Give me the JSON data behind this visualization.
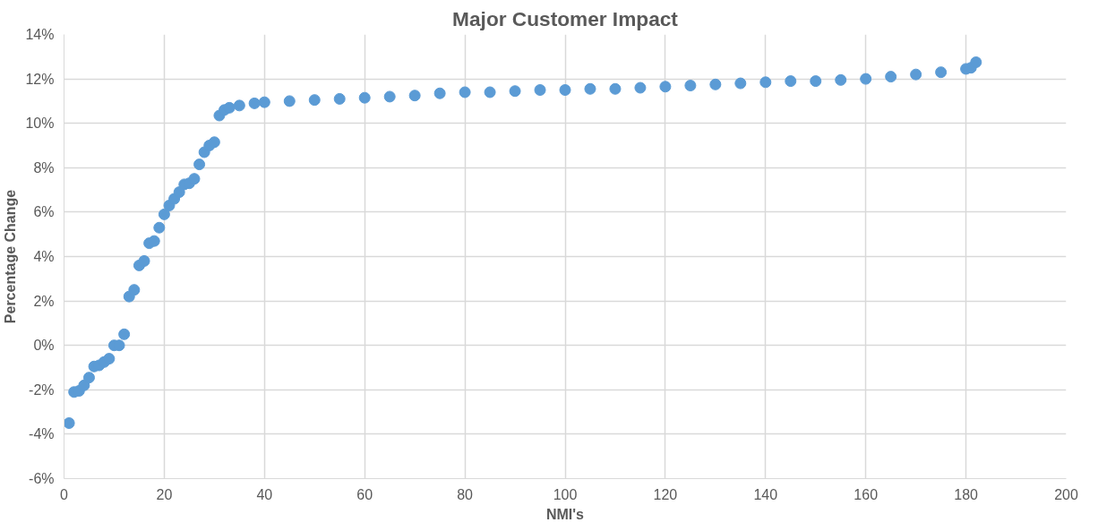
{
  "chart_data": {
    "type": "scatter",
    "title": "Major Customer Impact",
    "xlabel": "NMI's",
    "ylabel": "Percentage Change",
    "x": [
      1,
      2,
      3,
      4,
      5,
      6,
      7,
      8,
      9,
      10,
      11,
      12,
      13,
      14,
      15,
      16,
      17,
      18,
      19,
      20,
      21,
      22,
      23,
      24,
      25,
      26,
      27,
      28,
      29,
      30,
      31,
      32,
      33,
      35,
      38,
      40,
      45,
      50,
      55,
      60,
      65,
      70,
      75,
      80,
      85,
      90,
      95,
      100,
      105,
      110,
      115,
      120,
      125,
      130,
      135,
      140,
      145,
      150,
      155,
      160,
      165,
      170,
      175,
      180,
      181,
      182
    ],
    "series": [
      {
        "color": "#5b9bd5",
        "values": [
          -3.5,
          -2.1,
          -2.05,
          -1.8,
          -1.45,
          -0.95,
          -0.9,
          -0.75,
          -0.6,
          0.0,
          0.0,
          0.5,
          2.2,
          2.5,
          3.6,
          3.8,
          4.6,
          4.7,
          5.3,
          5.9,
          6.3,
          6.6,
          6.9,
          7.25,
          7.3,
          7.5,
          8.15,
          8.7,
          9.0,
          9.15,
          10.35,
          10.6,
          10.7,
          10.8,
          10.9,
          10.95,
          11.0,
          11.05,
          11.1,
          11.15,
          11.2,
          11.25,
          11.35,
          11.4,
          11.4,
          11.45,
          11.5,
          11.5,
          11.55,
          11.55,
          11.6,
          11.65,
          11.7,
          11.75,
          11.8,
          11.85,
          11.9,
          11.9,
          11.95,
          12.0,
          12.1,
          12.2,
          12.3,
          12.45,
          12.5,
          12.75
        ]
      }
    ],
    "xlim": [
      0,
      200
    ],
    "xticks": [
      0,
      20,
      40,
      60,
      80,
      100,
      120,
      140,
      160,
      180,
      200
    ],
    "ylim": [
      -6,
      14
    ],
    "yticks": [
      {
        "value": -6,
        "label": "-6%"
      },
      {
        "value": -4,
        "label": "-4%"
      },
      {
        "value": -2,
        "label": "-2%"
      },
      {
        "value": 0,
        "label": "0%"
      },
      {
        "value": 2,
        "label": "2%"
      },
      {
        "value": 4,
        "label": "4%"
      },
      {
        "value": 6,
        "label": "6%"
      },
      {
        "value": 8,
        "label": "8%"
      },
      {
        "value": 10,
        "label": "10%"
      },
      {
        "value": 12,
        "label": "12%"
      },
      {
        "value": 14,
        "label": "14%"
      }
    ],
    "grid": true,
    "marker": "circle"
  }
}
